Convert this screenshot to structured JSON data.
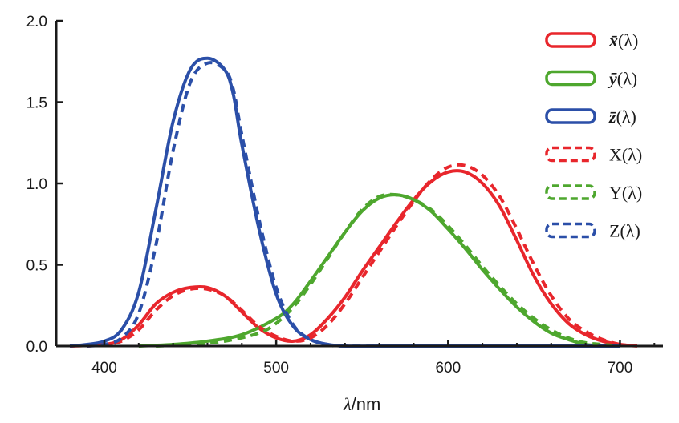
{
  "chart_data": {
    "type": "line",
    "xlabel_symbol": "λ",
    "xlabel_unit": "/nm",
    "xlim": [
      372,
      725
    ],
    "ylim": [
      0,
      2.0
    ],
    "x_ticks": [
      400,
      500,
      600,
      700
    ],
    "x_tick_labels": [
      "400",
      "500",
      "600",
      "700"
    ],
    "y_ticks": [
      0,
      0.5,
      1.0,
      1.5,
      2.0
    ],
    "y_tick_labels": [
      "0.0",
      "0.5",
      "1.0",
      "1.5",
      "2.0"
    ],
    "grid": false,
    "legend_position": "top-right",
    "series": [
      {
        "name": "x̄(λ)",
        "label_letter": "x̄",
        "label_suffix": "(λ)",
        "color": "#e8262c",
        "style": "solid",
        "points": [
          [
            380,
            0.0
          ],
          [
            400,
            0.01
          ],
          [
            410,
            0.04
          ],
          [
            420,
            0.13
          ],
          [
            430,
            0.26
          ],
          [
            440,
            0.33
          ],
          [
            450,
            0.36
          ],
          [
            460,
            0.36
          ],
          [
            470,
            0.31
          ],
          [
            480,
            0.21
          ],
          [
            490,
            0.11
          ],
          [
            500,
            0.05
          ],
          [
            510,
            0.03
          ],
          [
            520,
            0.07
          ],
          [
            530,
            0.17
          ],
          [
            540,
            0.3
          ],
          [
            550,
            0.46
          ],
          [
            560,
            0.61
          ],
          [
            570,
            0.76
          ],
          [
            580,
            0.9
          ],
          [
            590,
            1.01
          ],
          [
            600,
            1.07
          ],
          [
            610,
            1.07
          ],
          [
            620,
            1.0
          ],
          [
            630,
            0.86
          ],
          [
            640,
            0.65
          ],
          [
            650,
            0.43
          ],
          [
            660,
            0.26
          ],
          [
            670,
            0.14
          ],
          [
            680,
            0.07
          ],
          [
            690,
            0.03
          ],
          [
            700,
            0.01
          ],
          [
            710,
            0.0
          ]
        ]
      },
      {
        "name": "ȳ(λ)",
        "label_letter": "ȳ",
        "label_suffix": "(λ)",
        "color": "#4ea72e",
        "style": "solid",
        "points": [
          [
            420,
            0.0
          ],
          [
            440,
            0.01
          ],
          [
            460,
            0.03
          ],
          [
            480,
            0.07
          ],
          [
            500,
            0.17
          ],
          [
            510,
            0.26
          ],
          [
            520,
            0.4
          ],
          [
            530,
            0.55
          ],
          [
            540,
            0.7
          ],
          [
            550,
            0.83
          ],
          [
            560,
            0.91
          ],
          [
            570,
            0.93
          ],
          [
            580,
            0.9
          ],
          [
            590,
            0.83
          ],
          [
            600,
            0.72
          ],
          [
            610,
            0.6
          ],
          [
            620,
            0.47
          ],
          [
            630,
            0.35
          ],
          [
            640,
            0.24
          ],
          [
            650,
            0.15
          ],
          [
            660,
            0.08
          ],
          [
            670,
            0.04
          ],
          [
            680,
            0.01
          ],
          [
            690,
            0.0
          ]
        ]
      },
      {
        "name": "z̄(λ)",
        "label_letter": "z̄",
        "label_suffix": "(λ)",
        "color": "#2b4fa8",
        "style": "solid",
        "points": [
          [
            380,
            0.0
          ],
          [
            390,
            0.01
          ],
          [
            400,
            0.03
          ],
          [
            410,
            0.1
          ],
          [
            420,
            0.33
          ],
          [
            430,
            0.84
          ],
          [
            440,
            1.38
          ],
          [
            450,
            1.7
          ],
          [
            460,
            1.77
          ],
          [
            470,
            1.7
          ],
          [
            475,
            1.55
          ],
          [
            480,
            1.24
          ],
          [
            490,
            0.72
          ],
          [
            500,
            0.32
          ],
          [
            510,
            0.12
          ],
          [
            520,
            0.04
          ],
          [
            530,
            0.01
          ],
          [
            540,
            0.0
          ],
          [
            560,
            0.0
          ],
          [
            600,
            0.0
          ],
          [
            700,
            0.0
          ]
        ]
      },
      {
        "name": "X(λ)",
        "label_letter": "X",
        "label_suffix": "(λ)",
        "color": "#e8262c",
        "style": "dashed",
        "points": [
          [
            390,
            0.0
          ],
          [
            400,
            0.01
          ],
          [
            410,
            0.03
          ],
          [
            420,
            0.1
          ],
          [
            430,
            0.22
          ],
          [
            440,
            0.31
          ],
          [
            450,
            0.35
          ],
          [
            460,
            0.35
          ],
          [
            470,
            0.31
          ],
          [
            480,
            0.22
          ],
          [
            490,
            0.12
          ],
          [
            500,
            0.06
          ],
          [
            510,
            0.03
          ],
          [
            520,
            0.05
          ],
          [
            530,
            0.13
          ],
          [
            540,
            0.26
          ],
          [
            550,
            0.42
          ],
          [
            560,
            0.58
          ],
          [
            570,
            0.74
          ],
          [
            580,
            0.89
          ],
          [
            590,
            1.02
          ],
          [
            600,
            1.1
          ],
          [
            610,
            1.11
          ],
          [
            620,
            1.05
          ],
          [
            630,
            0.92
          ],
          [
            640,
            0.72
          ],
          [
            650,
            0.5
          ],
          [
            660,
            0.31
          ],
          [
            670,
            0.17
          ],
          [
            680,
            0.09
          ],
          [
            690,
            0.04
          ],
          [
            700,
            0.01
          ],
          [
            710,
            0.0
          ]
        ]
      },
      {
        "name": "Y(λ)",
        "label_letter": "Y",
        "label_suffix": "(λ)",
        "color": "#4ea72e",
        "style": "dashed",
        "points": [
          [
            430,
            0.0
          ],
          [
            450,
            0.01
          ],
          [
            470,
            0.03
          ],
          [
            490,
            0.08
          ],
          [
            500,
            0.14
          ],
          [
            510,
            0.24
          ],
          [
            520,
            0.38
          ],
          [
            530,
            0.54
          ],
          [
            540,
            0.7
          ],
          [
            550,
            0.84
          ],
          [
            560,
            0.92
          ],
          [
            570,
            0.93
          ],
          [
            580,
            0.9
          ],
          [
            590,
            0.84
          ],
          [
            600,
            0.74
          ],
          [
            610,
            0.62
          ],
          [
            620,
            0.49
          ],
          [
            630,
            0.37
          ],
          [
            640,
            0.26
          ],
          [
            650,
            0.17
          ],
          [
            660,
            0.1
          ],
          [
            670,
            0.05
          ],
          [
            680,
            0.02
          ],
          [
            690,
            0.01
          ],
          [
            700,
            0.0
          ]
        ]
      },
      {
        "name": "Z(λ)",
        "label_letter": "Z",
        "label_suffix": "(λ)",
        "color": "#2b4fa8",
        "style": "dashed",
        "points": [
          [
            390,
            0.0
          ],
          [
            400,
            0.01
          ],
          [
            410,
            0.05
          ],
          [
            420,
            0.2
          ],
          [
            430,
            0.62
          ],
          [
            440,
            1.2
          ],
          [
            450,
            1.62
          ],
          [
            460,
            1.74
          ],
          [
            470,
            1.7
          ],
          [
            475,
            1.58
          ],
          [
            480,
            1.3
          ],
          [
            490,
            0.78
          ],
          [
            500,
            0.36
          ],
          [
            510,
            0.13
          ],
          [
            520,
            0.04
          ],
          [
            530,
            0.01
          ],
          [
            540,
            0.0
          ],
          [
            600,
            0.0
          ],
          [
            700,
            0.0
          ]
        ]
      }
    ]
  }
}
